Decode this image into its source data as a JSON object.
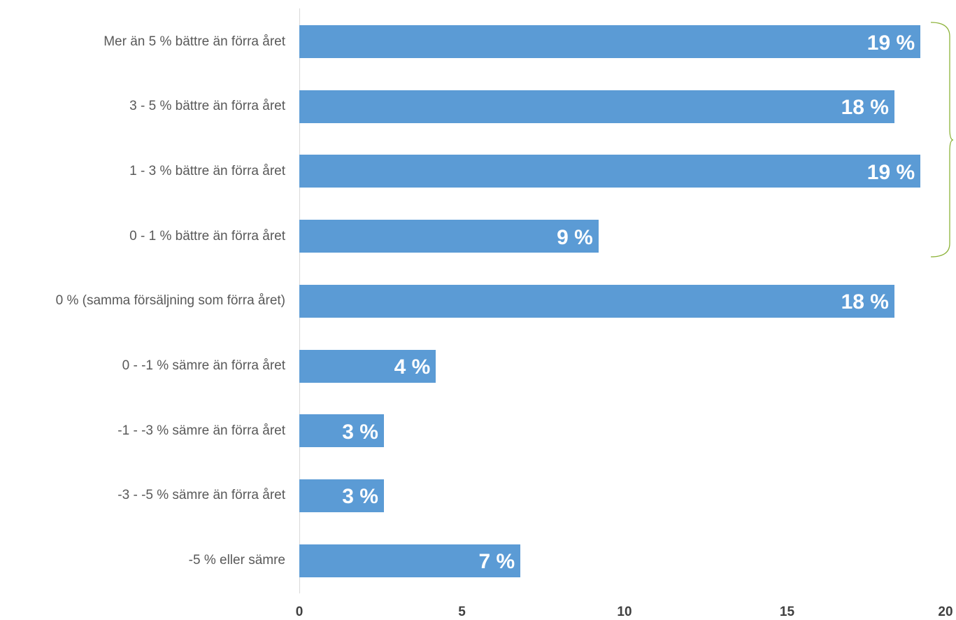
{
  "chart_data": {
    "type": "bar",
    "orientation": "horizontal",
    "categories": [
      "Mer än 5 % bättre än förra året",
      "3 - 5 % bättre än förra året",
      "1 - 3 % bättre än förra året",
      "0 - 1 % bättre än förra året",
      "0 % (samma försäljning som förra året)",
      "0 -   -1 % sämre än förra året",
      "-1  -  -3 % sämre än förra året",
      "-3  -  -5 % sämre än förra året",
      "-5 % eller sämre"
    ],
    "values": [
      19.1,
      18.3,
      19.1,
      9.2,
      18.3,
      4.2,
      2.6,
      2.6,
      6.8
    ],
    "data_labels": [
      "19 %",
      "18 %",
      "19 %",
      "9 %",
      "18 %",
      "4 %",
      "3 %",
      "3 %",
      "7 %"
    ],
    "xlim": [
      0,
      20
    ],
    "xticks": [
      "0",
      "5",
      "10",
      "15",
      "20"
    ],
    "title": "",
    "xlabel": "",
    "ylabel": "",
    "bar_color": "#5b9bd5",
    "bracket_color": "#8db33a",
    "grid": false,
    "legend": "none"
  }
}
